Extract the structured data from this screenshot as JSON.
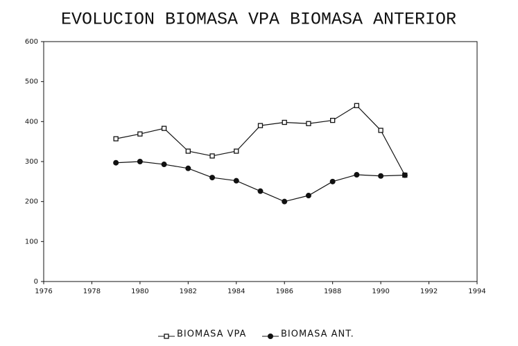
{
  "chart_data": {
    "type": "line",
    "title": "EVOLUCION BIOMASA VPA BIOMASA ANTERIOR",
    "x": [
      1979,
      1980,
      1981,
      1982,
      1983,
      1984,
      1985,
      1986,
      1987,
      1988,
      1989,
      1990,
      1991
    ],
    "series": [
      {
        "name": "BIOMASA VPA",
        "color": "#111111",
        "marker": "open-square",
        "values": [
          357,
          369,
          383,
          326,
          314,
          326,
          390,
          398,
          395,
          403,
          440,
          378,
          266
        ]
      },
      {
        "name": "BIOMASA ANT.",
        "color": "#111111",
        "marker": "filled-circle",
        "values": [
          297,
          300,
          293,
          283,
          260,
          252,
          226,
          200,
          215,
          250,
          267,
          264,
          266
        ]
      }
    ],
    "xlim": [
      1976,
      1994
    ],
    "xticks": [
      1976,
      1978,
      1980,
      1982,
      1984,
      1986,
      1988,
      1990,
      1992,
      1994
    ],
    "ylim": [
      0,
      600
    ],
    "yticks": [
      0,
      100,
      200,
      300,
      400,
      500,
      600
    ],
    "grid": false,
    "legend": "bottom"
  }
}
